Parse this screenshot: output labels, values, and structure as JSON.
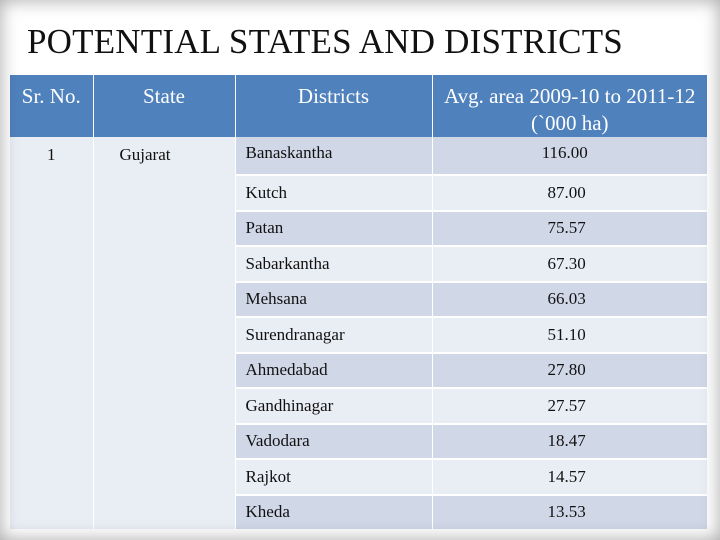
{
  "title": "POTENTIAL STATES AND DISTRICTS",
  "table": {
    "headers": {
      "sr_no": "Sr. No.",
      "state": "State",
      "districts": "Districts",
      "avg_area": "Avg. area 2009-10 to 2011-12 (`000 ha)"
    },
    "sr_no": "1",
    "state": "Gujarat",
    "rows": [
      {
        "district": "Banaskantha",
        "area": "116.00"
      },
      {
        "district": "Kutch",
        "area": "87.00"
      },
      {
        "district": "Patan",
        "area": "75.57"
      },
      {
        "district": "Sabarkantha",
        "area": "67.30"
      },
      {
        "district": "Mehsana",
        "area": "66.03"
      },
      {
        "district": "Surendranagar",
        "area": "51.10"
      },
      {
        "district": "Ahmedabad",
        "area": "27.80"
      },
      {
        "district": "Gandhinagar",
        "area": "27.57"
      },
      {
        "district": "Vadodara",
        "area": "18.47"
      },
      {
        "district": "Rajkot",
        "area": "14.57"
      },
      {
        "district": "Kheda",
        "area": "13.53"
      }
    ]
  },
  "colors": {
    "header_bg": "#4f81bd",
    "row_dark": "#d0d8e8",
    "row_light": "#e9edf4"
  }
}
